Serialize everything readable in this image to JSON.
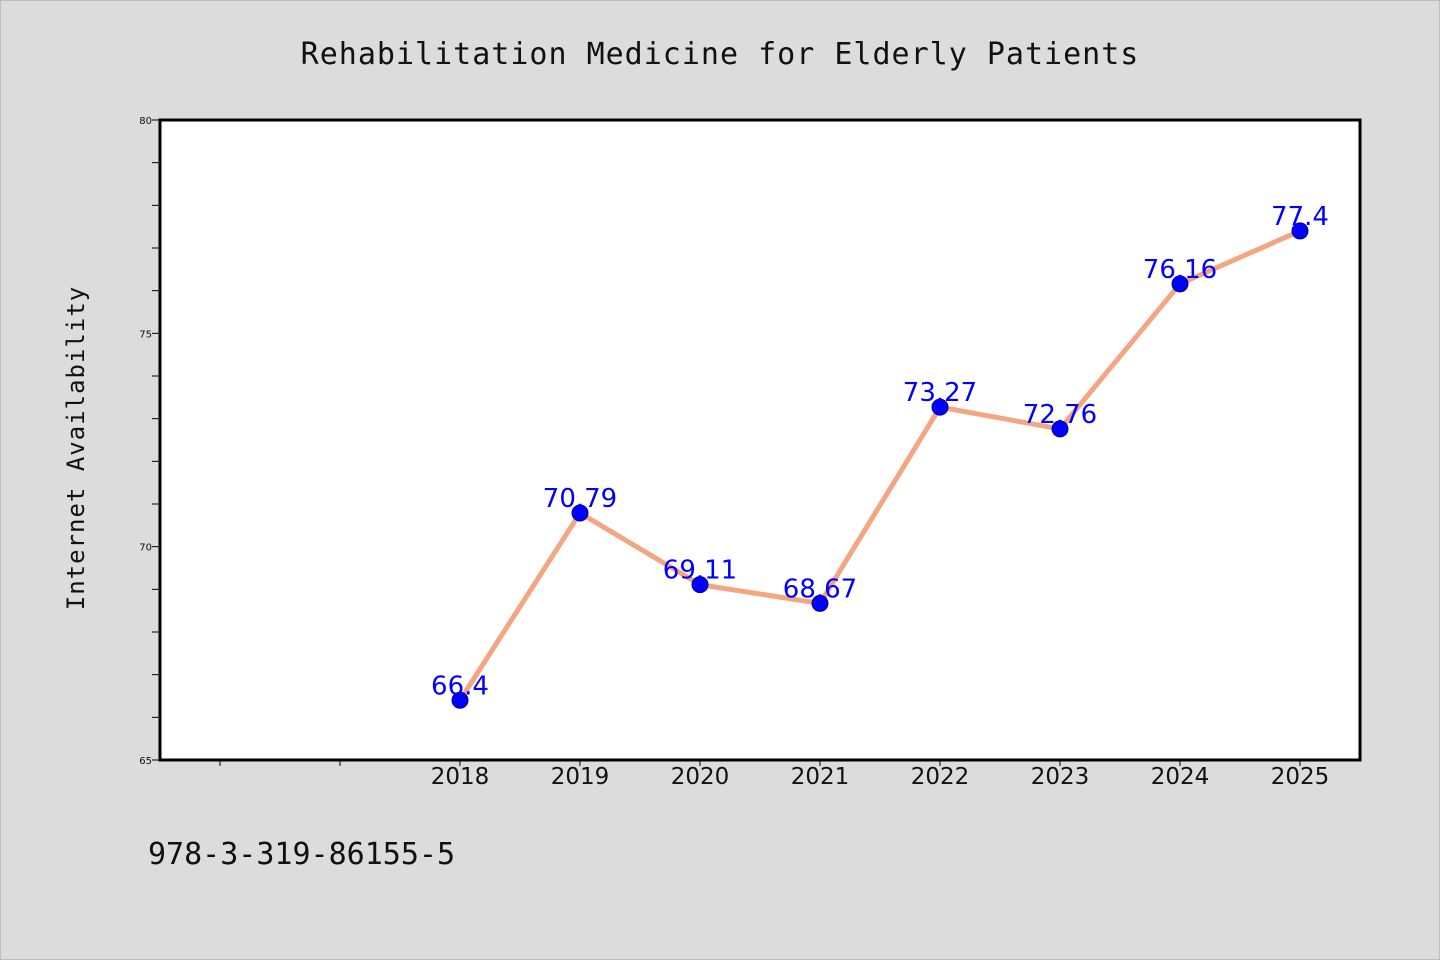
{
  "chart_data": {
    "type": "line",
    "title": "Rehabilitation Medicine for Elderly Patients",
    "ylabel": "Internet Availability",
    "xlabel": "",
    "x": [
      "2018",
      "2019",
      "2020",
      "2021",
      "2022",
      "2023",
      "2024",
      "2025"
    ],
    "y": [
      66.4,
      70.79,
      69.11,
      68.67,
      73.27,
      72.76,
      76.16,
      77.4
    ],
    "data_labels": [
      "66.4",
      "70.79",
      "69.11",
      "68.67",
      "73.27",
      "72.76",
      "76.16",
      "77.4"
    ],
    "ylim": [
      65,
      80
    ],
    "yticks": [
      "65",
      "70",
      "75",
      "80"
    ],
    "line_color": "#f4a582",
    "marker_color": "#0000ff",
    "label_color": "#0000ff",
    "grid": false,
    "legend": "none"
  },
  "footer_text": "978-3-319-86155-5"
}
